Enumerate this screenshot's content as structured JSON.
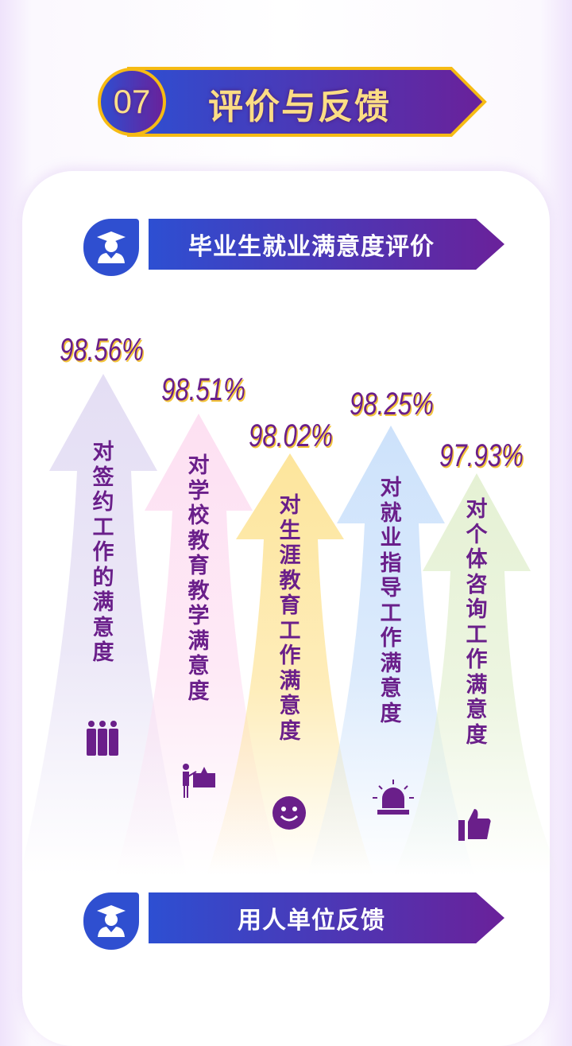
{
  "header": {
    "number": "07",
    "title": "评价与反馈"
  },
  "section1": {
    "title": "毕业生就业满意度评价",
    "icon": "graduate-icon"
  },
  "items": [
    {
      "value": "98.56%",
      "label": "对签约工作的满意度",
      "icon": "team-icon",
      "color": "#e4def4"
    },
    {
      "value": "98.51%",
      "label": "对学校教育教学满意度",
      "icon": "teacher-board-icon",
      "color": "#fde0f2"
    },
    {
      "value": "98.02%",
      "label": "对生涯教育工作满意度",
      "icon": "smile-icon",
      "color": "#fde59c"
    },
    {
      "value": "98.25%",
      "label": "对就业指导工作满意度",
      "icon": "alarm-light-icon",
      "color": "#cde2fb"
    },
    {
      "value": "97.93%",
      "label": "对个体咨询工作满意度",
      "icon": "thumbs-up-icon",
      "color": "#e5f1d4"
    }
  ],
  "section2": {
    "title": "用人单位反馈",
    "icon": "graduate-icon"
  },
  "colors": {
    "accent": "#6a1f8a",
    "banner_start": "#2d4fd2",
    "banner_end": "#6a219a",
    "gold": "#f6bb14"
  }
}
